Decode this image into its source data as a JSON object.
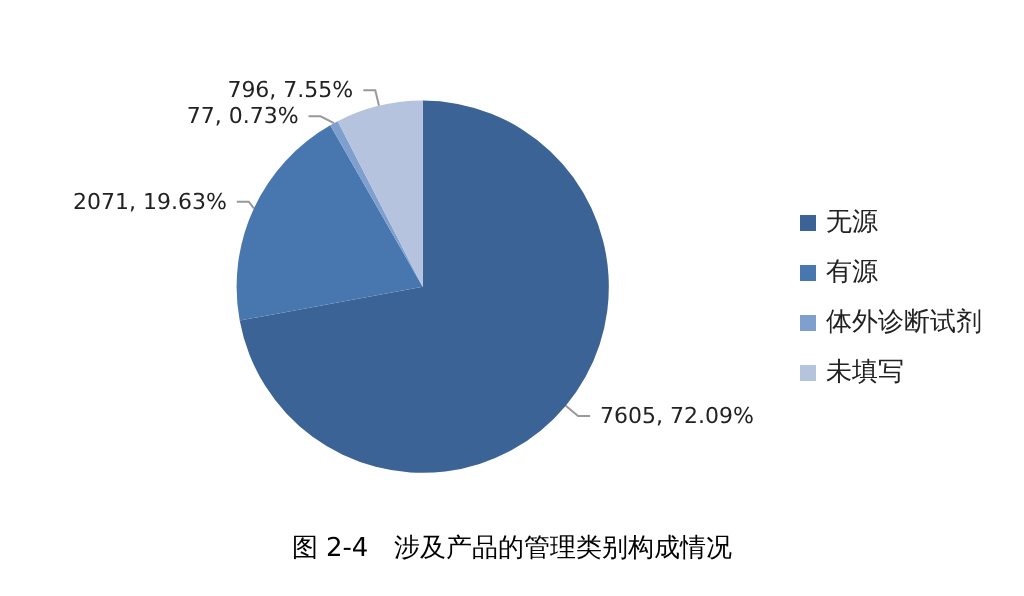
{
  "chart_data": {
    "type": "pie",
    "title": "图 2-4　涉及产品的管理类别构成情况",
    "categories": [
      "无源",
      "有源",
      "体外诊断试剂",
      "未填写"
    ],
    "values": [
      7605,
      2071,
      77,
      796
    ],
    "colors": [
      "#3c6396",
      "#4876ae",
      "#7f9fcf",
      "#b5c3de"
    ],
    "value_labels": [
      "7605, 72.09%",
      "2071, 19.63%",
      "77, 0.73%",
      "796, 7.55%"
    ],
    "legend": "right"
  }
}
